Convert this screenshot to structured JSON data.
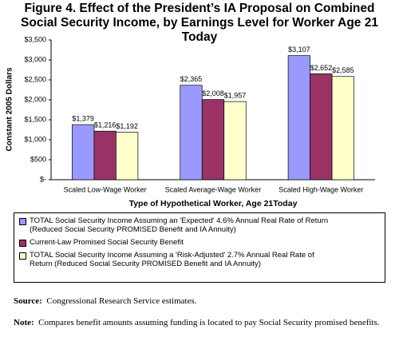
{
  "chart_data": {
    "type": "bar",
    "title": "Figure 4.  Effect of the President’s IA Proposal on Combined Social Security Income, by Earnings Level for Worker Age 21 Today",
    "x_label": "Type of Hypothetical Worker, Age 21Today",
    "y_label": "Constant 2005 Dollars",
    "categories": [
      "Scaled Low-Wage Worker",
      "Scaled Average-Wage Worker",
      "Scaled High-Wage Worker"
    ],
    "series": [
      {
        "name": "TOTAL Social Security Income Assuming an 'Expected' 4.6% Annual Real Rate of Return (Reduced Social Security PROMISED Benefit and IA Annuity)",
        "color": "#9999ff",
        "values": [
          1379,
          2365,
          3107
        ],
        "value_labels": [
          "$1,379",
          "$2,365",
          "$3,107"
        ]
      },
      {
        "name": "Current-Law Promised Social Security Benefit",
        "color": "#993366",
        "values": [
          1216,
          2008,
          2652
        ],
        "value_labels": [
          "$1,216",
          "$2,008",
          "$2,652"
        ]
      },
      {
        "name": "TOTAL Social Security Income Assuming a 'Risk-Adjusted' 2.7% Annual Real Rate of Return (Reduced Social Security PROMISED Benefit and IA Annuity)",
        "color": "#ffffcc",
        "values": [
          1192,
          1957,
          2585
        ],
        "value_labels": [
          "$1,192",
          "$1,957",
          "$2,585"
        ]
      }
    ],
    "ylim": [
      0,
      3500
    ],
    "yticks": [
      {
        "value": 0,
        "label": "$-"
      },
      {
        "value": 500,
        "label": "$500"
      },
      {
        "value": 1000,
        "label": "$1,000"
      },
      {
        "value": 1500,
        "label": "$1,500"
      },
      {
        "value": 2000,
        "label": "$2,000"
      },
      {
        "value": 2500,
        "label": "$2,500"
      },
      {
        "value": 3000,
        "label": "$3,000"
      },
      {
        "value": 3500,
        "label": "$3,500"
      }
    ],
    "grid": false
  },
  "notes": {
    "source_label": "Source:",
    "source_text": "Congressional Research Service estimates.",
    "note_label": "Note:",
    "note_text": "Compares benefit amounts assuming funding is located to pay Social Security promised benefits."
  }
}
